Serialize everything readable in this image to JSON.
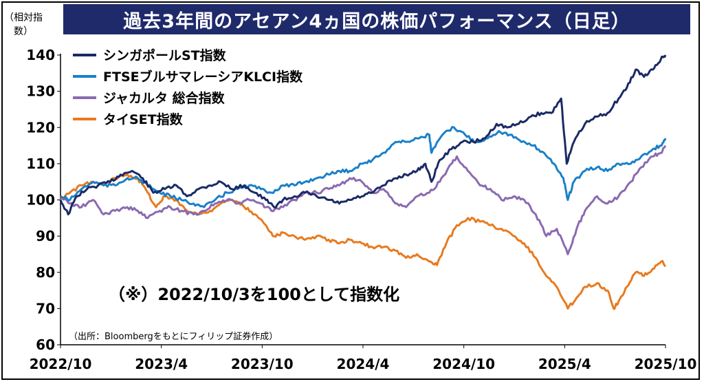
{
  "chart_data": {
    "type": "line",
    "title": "過去3年間のアセアン4ヵ国の株価パフォーマンス（日足）",
    "ylabel": "（相対指数）",
    "ylim": [
      60,
      140
    ],
    "yticks": [
      60,
      70,
      80,
      90,
      100,
      110,
      120,
      130,
      140
    ],
    "xticks": [
      "2022/10",
      "2023/4",
      "2023/10",
      "2024/4",
      "2024/10",
      "2025/4",
      "2025/10"
    ],
    "xrange": [
      "2022-10-03",
      "2025-10-03"
    ],
    "legend_position": "top-left",
    "annotation": "（※）2022/10/3を100として指数化",
    "source": "（出所：Bloombergをもとにフィリップ証券作成）",
    "series": [
      {
        "name": "シンガポールST指数",
        "color": "#1a2a66",
        "points": [
          [
            "2022-10-03",
            100
          ],
          [
            "2022-10-17",
            96
          ],
          [
            "2022-11-01",
            101
          ],
          [
            "2022-11-20",
            103
          ],
          [
            "2022-12-10",
            104
          ],
          [
            "2023-01-01",
            105
          ],
          [
            "2023-01-20",
            107
          ],
          [
            "2023-02-10",
            108
          ],
          [
            "2023-03-01",
            106
          ],
          [
            "2023-03-20",
            102
          ],
          [
            "2023-04-10",
            103
          ],
          [
            "2023-05-01",
            104
          ],
          [
            "2023-05-20",
            101
          ],
          [
            "2023-06-10",
            103
          ],
          [
            "2023-07-01",
            104
          ],
          [
            "2023-07-20",
            105
          ],
          [
            "2023-08-10",
            103
          ],
          [
            "2023-09-01",
            104
          ],
          [
            "2023-09-20",
            102
          ],
          [
            "2023-10-10",
            100
          ],
          [
            "2023-10-25",
            98
          ],
          [
            "2023-11-10",
            100
          ],
          [
            "2023-12-01",
            101
          ],
          [
            "2023-12-20",
            102
          ],
          [
            "2024-01-10",
            101
          ],
          [
            "2024-02-01",
            100
          ],
          [
            "2024-02-20",
            99
          ],
          [
            "2024-03-10",
            100
          ],
          [
            "2024-04-01",
            101
          ],
          [
            "2024-04-20",
            102
          ],
          [
            "2024-05-10",
            104
          ],
          [
            "2024-06-01",
            106
          ],
          [
            "2024-06-20",
            107
          ],
          [
            "2024-07-10",
            108
          ],
          [
            "2024-07-25",
            110
          ],
          [
            "2024-08-05",
            105
          ],
          [
            "2024-08-20",
            111
          ],
          [
            "2024-09-10",
            114
          ],
          [
            "2024-09-30",
            116
          ],
          [
            "2024-10-20",
            116
          ],
          [
            "2024-11-10",
            117
          ],
          [
            "2024-12-01",
            121
          ],
          [
            "2024-12-20",
            120
          ],
          [
            "2025-01-10",
            121
          ],
          [
            "2025-02-01",
            123
          ],
          [
            "2025-02-20",
            124
          ],
          [
            "2025-03-10",
            124
          ],
          [
            "2025-03-28",
            128
          ],
          [
            "2025-04-07",
            110
          ],
          [
            "2025-04-20",
            116
          ],
          [
            "2025-05-10",
            121
          ],
          [
            "2025-06-01",
            123
          ],
          [
            "2025-06-20",
            124
          ],
          [
            "2025-07-10",
            128
          ],
          [
            "2025-07-25",
            131
          ],
          [
            "2025-08-10",
            136
          ],
          [
            "2025-08-25",
            134
          ],
          [
            "2025-09-10",
            136
          ],
          [
            "2025-09-25",
            139
          ],
          [
            "2025-10-03",
            140
          ]
        ]
      },
      {
        "name": "FTSEブルサマレーシアKLCI指数",
        "color": "#1a80c8",
        "points": [
          [
            "2022-10-03",
            101
          ],
          [
            "2022-10-20",
            100
          ],
          [
            "2022-11-10",
            103
          ],
          [
            "2022-12-01",
            105
          ],
          [
            "2022-12-20",
            104
          ],
          [
            "2023-01-10",
            104
          ],
          [
            "2023-02-01",
            106
          ],
          [
            "2023-02-20",
            106
          ],
          [
            "2023-03-10",
            104
          ],
          [
            "2023-04-01",
            102
          ],
          [
            "2023-04-20",
            101
          ],
          [
            "2023-05-10",
            100
          ],
          [
            "2023-06-01",
            99
          ],
          [
            "2023-06-20",
            98
          ],
          [
            "2023-07-10",
            100
          ],
          [
            "2023-08-01",
            102
          ],
          [
            "2023-08-20",
            103
          ],
          [
            "2023-09-10",
            104
          ],
          [
            "2023-10-01",
            103
          ],
          [
            "2023-10-20",
            102
          ],
          [
            "2023-11-10",
            104
          ],
          [
            "2023-12-01",
            104
          ],
          [
            "2023-12-20",
            105
          ],
          [
            "2024-01-10",
            106
          ],
          [
            "2024-02-01",
            107
          ],
          [
            "2024-02-20",
            108
          ],
          [
            "2024-03-10",
            108
          ],
          [
            "2024-04-01",
            110
          ],
          [
            "2024-04-20",
            111
          ],
          [
            "2024-05-10",
            113
          ],
          [
            "2024-06-01",
            116
          ],
          [
            "2024-06-20",
            116
          ],
          [
            "2024-07-10",
            117
          ],
          [
            "2024-08-01",
            118
          ],
          [
            "2024-08-05",
            113
          ],
          [
            "2024-08-25",
            118
          ],
          [
            "2024-09-15",
            120
          ],
          [
            "2024-10-05",
            118
          ],
          [
            "2024-10-25",
            116
          ],
          [
            "2024-11-15",
            117
          ],
          [
            "2024-12-05",
            119
          ],
          [
            "2024-12-25",
            118
          ],
          [
            "2025-01-15",
            116
          ],
          [
            "2025-02-05",
            115
          ],
          [
            "2025-02-25",
            113
          ],
          [
            "2025-03-15",
            110
          ],
          [
            "2025-04-01",
            106
          ],
          [
            "2025-04-09",
            100
          ],
          [
            "2025-04-20",
            105
          ],
          [
            "2025-05-10",
            108
          ],
          [
            "2025-06-01",
            109
          ],
          [
            "2025-06-20",
            108
          ],
          [
            "2025-07-10",
            110
          ],
          [
            "2025-08-01",
            110
          ],
          [
            "2025-08-20",
            112
          ],
          [
            "2025-09-10",
            114
          ],
          [
            "2025-09-25",
            115
          ],
          [
            "2025-10-03",
            117
          ]
        ]
      },
      {
        "name": "ジャカルタ 総合指数",
        "color": "#8a6ab0",
        "points": [
          [
            "2022-10-03",
            101
          ],
          [
            "2022-10-20",
            99
          ],
          [
            "2022-11-10",
            98
          ],
          [
            "2022-12-01",
            100
          ],
          [
            "2022-12-20",
            96
          ],
          [
            "2023-01-10",
            97
          ],
          [
            "2023-02-01",
            98
          ],
          [
            "2023-02-20",
            97
          ],
          [
            "2023-03-10",
            95
          ],
          [
            "2023-04-01",
            97
          ],
          [
            "2023-04-20",
            98
          ],
          [
            "2023-05-10",
            97
          ],
          [
            "2023-06-01",
            96
          ],
          [
            "2023-06-20",
            97
          ],
          [
            "2023-07-10",
            99
          ],
          [
            "2023-08-01",
            100
          ],
          [
            "2023-08-20",
            99
          ],
          [
            "2023-09-10",
            100
          ],
          [
            "2023-10-01",
            99
          ],
          [
            "2023-10-20",
            97
          ],
          [
            "2023-11-10",
            98
          ],
          [
            "2023-12-01",
            100
          ],
          [
            "2023-12-20",
            102
          ],
          [
            "2024-01-10",
            102
          ],
          [
            "2024-02-01",
            103
          ],
          [
            "2024-02-20",
            104
          ],
          [
            "2024-03-10",
            106
          ],
          [
            "2024-04-01",
            105
          ],
          [
            "2024-04-20",
            102
          ],
          [
            "2024-05-10",
            103
          ],
          [
            "2024-06-01",
            99
          ],
          [
            "2024-06-20",
            98
          ],
          [
            "2024-07-10",
            101
          ],
          [
            "2024-08-01",
            102
          ],
          [
            "2024-08-20",
            105
          ],
          [
            "2024-09-10",
            110
          ],
          [
            "2024-09-20",
            112
          ],
          [
            "2024-10-10",
            108
          ],
          [
            "2024-11-01",
            104
          ],
          [
            "2024-11-20",
            103
          ],
          [
            "2024-12-10",
            100
          ],
          [
            "2025-01-01",
            101
          ],
          [
            "2025-01-20",
            100
          ],
          [
            "2025-02-10",
            96
          ],
          [
            "2025-03-01",
            90
          ],
          [
            "2025-03-20",
            92
          ],
          [
            "2025-04-09",
            85
          ],
          [
            "2025-04-25",
            92
          ],
          [
            "2025-05-10",
            97
          ],
          [
            "2025-06-01",
            101
          ],
          [
            "2025-06-20",
            99
          ],
          [
            "2025-07-10",
            101
          ],
          [
            "2025-08-01",
            105
          ],
          [
            "2025-08-20",
            109
          ],
          [
            "2025-09-10",
            112
          ],
          [
            "2025-09-25",
            113
          ],
          [
            "2025-10-03",
            115
          ]
        ]
      },
      {
        "name": "タイSET指数",
        "color": "#e87a1e",
        "points": [
          [
            "2022-10-03",
            100
          ],
          [
            "2022-10-20",
            102
          ],
          [
            "2022-11-10",
            104
          ],
          [
            "2022-12-01",
            105
          ],
          [
            "2022-12-20",
            104
          ],
          [
            "2023-01-10",
            106
          ],
          [
            "2023-02-01",
            107
          ],
          [
            "2023-02-20",
            106
          ],
          [
            "2023-03-10",
            102
          ],
          [
            "2023-03-25",
            98
          ],
          [
            "2023-04-10",
            101
          ],
          [
            "2023-05-01",
            100
          ],
          [
            "2023-05-20",
            97
          ],
          [
            "2023-06-10",
            96
          ],
          [
            "2023-07-01",
            97
          ],
          [
            "2023-07-20",
            99
          ],
          [
            "2023-08-10",
            100
          ],
          [
            "2023-09-01",
            98
          ],
          [
            "2023-09-20",
            96
          ],
          [
            "2023-10-10",
            93
          ],
          [
            "2023-10-25",
            90
          ],
          [
            "2023-11-10",
            91
          ],
          [
            "2023-12-01",
            90
          ],
          [
            "2023-12-20",
            89
          ],
          [
            "2024-01-10",
            90
          ],
          [
            "2024-02-01",
            89
          ],
          [
            "2024-02-20",
            88
          ],
          [
            "2024-03-10",
            89
          ],
          [
            "2024-04-01",
            88
          ],
          [
            "2024-04-20",
            87
          ],
          [
            "2024-05-10",
            87
          ],
          [
            "2024-06-01",
            86
          ],
          [
            "2024-06-20",
            84
          ],
          [
            "2024-07-10",
            85
          ],
          [
            "2024-08-01",
            83
          ],
          [
            "2024-08-15",
            82
          ],
          [
            "2024-09-01",
            88
          ],
          [
            "2024-09-20",
            93
          ],
          [
            "2024-10-10",
            95
          ],
          [
            "2024-11-01",
            94
          ],
          [
            "2024-11-20",
            93
          ],
          [
            "2024-12-10",
            92
          ],
          [
            "2025-01-01",
            90
          ],
          [
            "2025-01-20",
            88
          ],
          [
            "2025-02-10",
            84
          ],
          [
            "2025-03-01",
            79
          ],
          [
            "2025-03-20",
            76
          ],
          [
            "2025-04-09",
            70
          ],
          [
            "2025-04-25",
            73
          ],
          [
            "2025-05-10",
            76
          ],
          [
            "2025-06-01",
            77
          ],
          [
            "2025-06-20",
            75
          ],
          [
            "2025-07-01",
            70
          ],
          [
            "2025-07-10",
            72
          ],
          [
            "2025-07-25",
            76
          ],
          [
            "2025-08-10",
            80
          ],
          [
            "2025-08-25",
            79
          ],
          [
            "2025-09-10",
            81
          ],
          [
            "2025-09-25",
            83
          ],
          [
            "2025-10-03",
            82
          ]
        ]
      }
    ]
  }
}
